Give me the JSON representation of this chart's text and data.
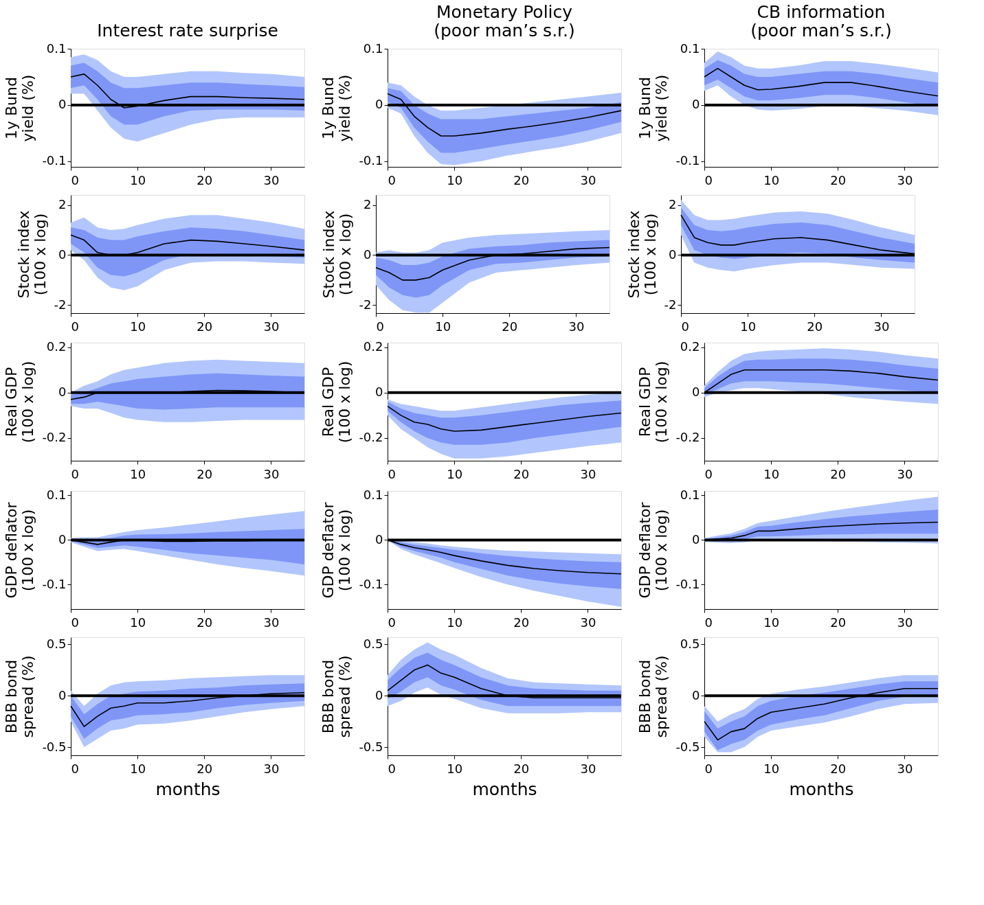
{
  "chart_data": [
    {
      "type": "line",
      "title": "Interest rate surprise",
      "ylabel": "1y  Bund\nyield (%)",
      "x": [
        0,
        2,
        4,
        6,
        8,
        10,
        14,
        18,
        22,
        26,
        30,
        35
      ],
      "xlim": [
        0,
        35
      ],
      "xticks": [
        0,
        10,
        20,
        30
      ],
      "ylim": [
        -0.11,
        0.1
      ],
      "yticks": [
        -0.1,
        0,
        0.1
      ],
      "grid": false,
      "legend": false,
      "marker": "none",
      "ref_lines": [
        {
          "axis": "y",
          "value": 0,
          "color": "#000000"
        }
      ],
      "series": [
        {
          "color": "#b2c6fd",
          "values": [
            null,
            null,
            null,
            null,
            null,
            null,
            null,
            null,
            null,
            null,
            null,
            null
          ],
          "upper": [
            0.085,
            0.09,
            0.08,
            0.06,
            0.05,
            0.05,
            0.055,
            0.06,
            0.06,
            0.057,
            0.055,
            0.05
          ],
          "lower": [
            0.02,
            0.02,
            -0.01,
            -0.04,
            -0.06,
            -0.065,
            -0.05,
            -0.035,
            -0.025,
            -0.022,
            -0.022,
            -0.022
          ]
        },
        {
          "color": "#7f96f7",
          "values": [
            null,
            null,
            null,
            null,
            null,
            null,
            null,
            null,
            null,
            null,
            null,
            null
          ],
          "upper": [
            0.07,
            0.075,
            0.06,
            0.04,
            0.03,
            0.03,
            0.035,
            0.04,
            0.04,
            0.037,
            0.035,
            0.032
          ],
          "lower": [
            0.03,
            0.035,
            0.01,
            -0.02,
            -0.035,
            -0.035,
            -0.02,
            -0.01,
            -0.008,
            -0.008,
            -0.008,
            -0.01
          ]
        },
        {
          "color": "#000000",
          "values": [
            0.05,
            0.055,
            0.035,
            0.01,
            -0.005,
            -0.002,
            0.008,
            0.015,
            0.015,
            0.013,
            0.012,
            0.01
          ]
        }
      ]
    },
    {
      "type": "line",
      "title": "Monetary Policy\n(poor man’s s.r.)",
      "ylabel": "1y  Bund\nyield (%)",
      "x": [
        0,
        2,
        4,
        6,
        8,
        10,
        14,
        18,
        22,
        26,
        30,
        35
      ],
      "xlim": [
        0,
        35
      ],
      "xticks": [
        0,
        10,
        20,
        30
      ],
      "ylim": [
        -0.11,
        0.1
      ],
      "yticks": [
        -0.1,
        0,
        0.1
      ],
      "grid": false,
      "legend": false,
      "marker": "none",
      "ref_lines": [
        {
          "axis": "y",
          "value": 0,
          "color": "#000000"
        }
      ],
      "series": [
        {
          "color": "#b2c6fd",
          "values": [
            null,
            null,
            null,
            null,
            null,
            null,
            null,
            null,
            null,
            null,
            null,
            null
          ],
          "upper": [
            0.04,
            0.035,
            0.015,
            0.0,
            -0.01,
            -0.01,
            -0.005,
            0.0,
            0.005,
            0.01,
            0.015,
            0.022
          ],
          "lower": [
            -0.005,
            -0.015,
            -0.055,
            -0.085,
            -0.105,
            -0.107,
            -0.1,
            -0.09,
            -0.082,
            -0.075,
            -0.065,
            -0.05
          ]
        },
        {
          "color": "#7f96f7",
          "values": [
            null,
            null,
            null,
            null,
            null,
            null,
            null,
            null,
            null,
            null,
            null,
            null
          ],
          "upper": [
            0.03,
            0.025,
            0.0,
            -0.015,
            -0.025,
            -0.025,
            -0.025,
            -0.02,
            -0.015,
            -0.01,
            -0.005,
            0.005
          ],
          "lower": [
            0.005,
            -0.005,
            -0.04,
            -0.065,
            -0.085,
            -0.085,
            -0.078,
            -0.07,
            -0.063,
            -0.055,
            -0.045,
            -0.03
          ]
        },
        {
          "color": "#000000",
          "values": [
            0.02,
            0.01,
            -0.02,
            -0.04,
            -0.055,
            -0.055,
            -0.05,
            -0.043,
            -0.037,
            -0.03,
            -0.022,
            -0.01
          ]
        }
      ]
    },
    {
      "type": "line",
      "title": "CB information\n(poor man’s s.r.)",
      "ylabel": "1y  Bund\nyield (%)",
      "x": [
        0,
        2,
        4,
        6,
        8,
        10,
        14,
        18,
        22,
        26,
        30,
        35
      ],
      "xlim": [
        0,
        35
      ],
      "xticks": [
        0,
        10,
        20,
        30
      ],
      "ylim": [
        -0.11,
        0.1
      ],
      "yticks": [
        -0.1,
        0,
        0.1
      ],
      "grid": false,
      "legend": false,
      "marker": "none",
      "ref_lines": [
        {
          "axis": "y",
          "value": 0,
          "color": "#000000"
        }
      ],
      "series": [
        {
          "color": "#b2c6fd",
          "values": [
            null,
            null,
            null,
            null,
            null,
            null,
            null,
            null,
            null,
            null,
            null,
            null
          ],
          "upper": [
            0.075,
            0.095,
            0.085,
            0.07,
            0.065,
            0.065,
            0.07,
            0.078,
            0.078,
            0.073,
            0.067,
            0.058
          ],
          "lower": [
            0.025,
            0.035,
            0.015,
            0.0,
            -0.008,
            -0.01,
            -0.007,
            -0.002,
            -0.002,
            -0.006,
            -0.01,
            -0.018
          ]
        },
        {
          "color": "#7f96f7",
          "values": [
            null,
            null,
            null,
            null,
            null,
            null,
            null,
            null,
            null,
            null,
            null,
            null
          ],
          "upper": [
            0.065,
            0.08,
            0.07,
            0.055,
            0.05,
            0.05,
            0.055,
            0.06,
            0.06,
            0.055,
            0.048,
            0.04
          ],
          "lower": [
            0.035,
            0.045,
            0.03,
            0.015,
            0.008,
            0.008,
            0.012,
            0.018,
            0.018,
            0.012,
            0.005,
            -0.003
          ]
        },
        {
          "color": "#000000",
          "values": [
            0.05,
            0.065,
            0.05,
            0.035,
            0.027,
            0.028,
            0.033,
            0.04,
            0.04,
            0.033,
            0.025,
            0.016
          ]
        }
      ]
    },
    {
      "type": "line",
      "ylabel": "Stock index\n(100 x log)",
      "x": [
        0,
        2,
        4,
        6,
        8,
        10,
        14,
        18,
        22,
        26,
        30,
        35
      ],
      "xlim": [
        0,
        35
      ],
      "xticks": [
        0,
        10,
        20,
        30
      ],
      "ylim": [
        -2.32,
        2.4
      ],
      "yticks": [
        -2,
        0,
        2
      ],
      "grid": false,
      "legend": false,
      "marker": "none",
      "ref_lines": [
        {
          "axis": "y",
          "value": 0,
          "color": "#000000"
        }
      ],
      "series": [
        {
          "color": "#b2c6fd",
          "values": [
            null,
            null,
            null,
            null,
            null,
            null,
            null,
            null,
            null,
            null,
            null,
            null
          ],
          "upper": [
            1.3,
            1.5,
            1.1,
            1.0,
            1.05,
            1.2,
            1.45,
            1.6,
            1.6,
            1.45,
            1.3,
            1.05
          ],
          "lower": [
            0.2,
            -0.2,
            -0.9,
            -1.3,
            -1.4,
            -1.25,
            -0.6,
            -0.3,
            -0.25,
            -0.25,
            -0.3,
            -0.35
          ]
        },
        {
          "color": "#7f96f7",
          "values": [
            null,
            null,
            null,
            null,
            null,
            null,
            null,
            null,
            null,
            null,
            null,
            null
          ],
          "upper": [
            1.1,
            1.0,
            0.7,
            0.6,
            0.6,
            0.75,
            0.95,
            1.1,
            1.05,
            0.95,
            0.8,
            0.6
          ],
          "lower": [
            0.45,
            0.1,
            -0.5,
            -0.8,
            -0.85,
            -0.7,
            -0.2,
            0.05,
            0.05,
            0.0,
            -0.05,
            -0.1
          ]
        },
        {
          "color": "#000000",
          "values": [
            0.8,
            0.6,
            0.1,
            0.0,
            0.0,
            0.1,
            0.45,
            0.6,
            0.55,
            0.45,
            0.35,
            0.2
          ]
        }
      ]
    },
    {
      "type": "line",
      "ylabel": "Stock index\n(100 x log)",
      "x": [
        0,
        2,
        4,
        6,
        8,
        10,
        14,
        18,
        22,
        26,
        30,
        35
      ],
      "xlim": [
        0,
        35
      ],
      "xticks": [
        0,
        10,
        20,
        30
      ],
      "ylim": [
        -2.32,
        2.4
      ],
      "yticks": [
        -2,
        0,
        2
      ],
      "grid": false,
      "legend": false,
      "marker": "none",
      "ref_lines": [
        {
          "axis": "y",
          "value": 0,
          "color": "#000000"
        }
      ],
      "series": [
        {
          "color": "#b2c6fd",
          "values": [
            null,
            null,
            null,
            null,
            null,
            null,
            null,
            null,
            null,
            null,
            null,
            null
          ],
          "upper": [
            0.1,
            0.2,
            0.1,
            0.1,
            0.2,
            0.5,
            0.7,
            0.8,
            0.85,
            0.9,
            0.95,
            1.0
          ],
          "lower": [
            -1.2,
            -1.8,
            -2.2,
            -2.3,
            -2.3,
            -1.9,
            -1.1,
            -0.7,
            -0.6,
            -0.5,
            -0.4,
            -0.3
          ]
        },
        {
          "color": "#7f96f7",
          "values": [
            null,
            null,
            null,
            null,
            null,
            null,
            null,
            null,
            null,
            null,
            null,
            null
          ],
          "upper": [
            -0.1,
            -0.2,
            -0.4,
            -0.4,
            -0.3,
            -0.05,
            0.25,
            0.35,
            0.4,
            0.5,
            0.55,
            0.6
          ],
          "lower": [
            -0.8,
            -1.3,
            -1.6,
            -1.7,
            -1.6,
            -1.2,
            -0.6,
            -0.35,
            -0.3,
            -0.2,
            -0.1,
            -0.05
          ]
        },
        {
          "color": "#000000",
          "values": [
            -0.5,
            -0.7,
            -1.0,
            -1.0,
            -0.9,
            -0.6,
            -0.2,
            0.0,
            0.05,
            0.15,
            0.25,
            0.3
          ]
        }
      ]
    },
    {
      "type": "line",
      "ylabel": "Stock index\n(100 x log)",
      "x": [
        0,
        2,
        4,
        6,
        8,
        10,
        14,
        18,
        22,
        26,
        30,
        35
      ],
      "xlim": [
        0,
        35
      ],
      "xticks": [
        0,
        10,
        20,
        30
      ],
      "ylim": [
        -2.32,
        2.4
      ],
      "yticks": [
        -2,
        0,
        2
      ],
      "grid": false,
      "legend": false,
      "marker": "none",
      "ref_lines": [
        {
          "axis": "y",
          "value": 0,
          "color": "#000000"
        }
      ],
      "series": [
        {
          "color": "#b2c6fd",
          "values": [
            null,
            null,
            null,
            null,
            null,
            null,
            null,
            null,
            null,
            null,
            null,
            null
          ],
          "upper": [
            2.2,
            1.6,
            1.4,
            1.4,
            1.45,
            1.55,
            1.7,
            1.75,
            1.65,
            1.4,
            1.1,
            0.8
          ],
          "lower": [
            0.8,
            -0.3,
            -0.5,
            -0.6,
            -0.65,
            -0.55,
            -0.4,
            -0.3,
            -0.3,
            -0.4,
            -0.5,
            -0.55
          ]
        },
        {
          "color": "#7f96f7",
          "values": [
            null,
            null,
            null,
            null,
            null,
            null,
            null,
            null,
            null,
            null,
            null,
            null
          ],
          "upper": [
            1.9,
            1.2,
            1.0,
            0.95,
            1.0,
            1.1,
            1.25,
            1.3,
            1.2,
            0.95,
            0.7,
            0.45
          ],
          "lower": [
            1.2,
            0.2,
            0.0,
            -0.1,
            -0.15,
            -0.1,
            0.05,
            0.1,
            0.05,
            -0.1,
            -0.2,
            -0.3
          ]
        },
        {
          "color": "#000000",
          "values": [
            1.6,
            0.7,
            0.5,
            0.4,
            0.4,
            0.5,
            0.65,
            0.7,
            0.6,
            0.4,
            0.2,
            0.05
          ]
        }
      ]
    },
    {
      "type": "line",
      "ylabel": "Real GDP\n(100 x log)",
      "x": [
        0,
        2,
        4,
        6,
        8,
        10,
        14,
        18,
        22,
        26,
        30,
        35
      ],
      "xlim": [
        0,
        35
      ],
      "xticks": [
        0,
        10,
        20,
        30
      ],
      "ylim": [
        -0.3,
        0.22
      ],
      "yticks": [
        -0.2,
        0,
        0.2
      ],
      "grid": false,
      "legend": false,
      "marker": "none",
      "ref_lines": [
        {
          "axis": "y",
          "value": 0,
          "color": "#000000"
        }
      ],
      "series": [
        {
          "color": "#b2c6fd",
          "values": [
            null,
            null,
            null,
            null,
            null,
            null,
            null,
            null,
            null,
            null,
            null,
            null
          ],
          "upper": [
            0.0,
            0.03,
            0.05,
            0.08,
            0.1,
            0.11,
            0.13,
            0.14,
            0.145,
            0.14,
            0.135,
            0.13
          ],
          "lower": [
            -0.06,
            -0.07,
            -0.07,
            -0.09,
            -0.11,
            -0.12,
            -0.13,
            -0.13,
            -0.125,
            -0.12,
            -0.12,
            -0.12
          ]
        },
        {
          "color": "#7f96f7",
          "values": [
            null,
            null,
            null,
            null,
            null,
            null,
            null,
            null,
            null,
            null,
            null,
            null
          ],
          "upper": [
            -0.01,
            0.0,
            0.02,
            0.04,
            0.05,
            0.06,
            0.07,
            0.08,
            0.085,
            0.08,
            0.075,
            0.07
          ],
          "lower": [
            -0.05,
            -0.05,
            -0.04,
            -0.05,
            -0.06,
            -0.07,
            -0.075,
            -0.07,
            -0.065,
            -0.065,
            -0.065,
            -0.065
          ]
        },
        {
          "color": "#000000",
          "values": [
            -0.03,
            -0.02,
            0.0,
            0.0,
            0.0,
            0.0,
            0.0,
            0.005,
            0.01,
            0.008,
            0.005,
            0.0
          ]
        }
      ]
    },
    {
      "type": "line",
      "ylabel": "Real GDP\n(100 x log)",
      "x": [
        0,
        2,
        4,
        6,
        8,
        10,
        14,
        18,
        22,
        26,
        30,
        35
      ],
      "xlim": [
        0,
        35
      ],
      "xticks": [
        0,
        10,
        20,
        30
      ],
      "ylim": [
        -0.3,
        0.22
      ],
      "yticks": [
        -0.2,
        0,
        0.2
      ],
      "grid": false,
      "legend": false,
      "marker": "none",
      "ref_lines": [
        {
          "axis": "y",
          "value": 0,
          "color": "#000000"
        }
      ],
      "series": [
        {
          "color": "#b2c6fd",
          "values": [
            null,
            null,
            null,
            null,
            null,
            null,
            null,
            null,
            null,
            null,
            null,
            null
          ],
          "upper": [
            -0.03,
            -0.05,
            -0.06,
            -0.07,
            -0.08,
            -0.08,
            -0.065,
            -0.05,
            -0.035,
            -0.02,
            -0.01,
            0.0
          ],
          "lower": [
            -0.1,
            -0.16,
            -0.2,
            -0.24,
            -0.27,
            -0.29,
            -0.29,
            -0.28,
            -0.265,
            -0.25,
            -0.235,
            -0.22
          ]
        },
        {
          "color": "#7f96f7",
          "values": [
            null,
            null,
            null,
            null,
            null,
            null,
            null,
            null,
            null,
            null,
            null,
            null
          ],
          "upper": [
            -0.04,
            -0.07,
            -0.09,
            -0.1,
            -0.11,
            -0.11,
            -0.1,
            -0.085,
            -0.07,
            -0.055,
            -0.045,
            -0.035
          ],
          "lower": [
            -0.08,
            -0.13,
            -0.17,
            -0.2,
            -0.22,
            -0.23,
            -0.23,
            -0.22,
            -0.2,
            -0.185,
            -0.17,
            -0.15
          ]
        },
        {
          "color": "#000000",
          "values": [
            -0.06,
            -0.1,
            -0.13,
            -0.14,
            -0.16,
            -0.17,
            -0.165,
            -0.15,
            -0.135,
            -0.12,
            -0.105,
            -0.09
          ]
        }
      ]
    },
    {
      "type": "line",
      "ylabel": "Real GDP\n(100 x log)",
      "x": [
        0,
        2,
        4,
        6,
        8,
        10,
        14,
        18,
        22,
        26,
        30,
        35
      ],
      "xlim": [
        0,
        35
      ],
      "xticks": [
        0,
        10,
        20,
        30
      ],
      "ylim": [
        -0.3,
        0.22
      ],
      "yticks": [
        -0.2,
        0,
        0.2
      ],
      "grid": false,
      "legend": false,
      "marker": "none",
      "ref_lines": [
        {
          "axis": "y",
          "value": 0,
          "color": "#000000"
        }
      ],
      "series": [
        {
          "color": "#b2c6fd",
          "values": [
            null,
            null,
            null,
            null,
            null,
            null,
            null,
            null,
            null,
            null,
            null,
            null
          ],
          "upper": [
            0.03,
            0.09,
            0.14,
            0.17,
            0.18,
            0.185,
            0.19,
            0.195,
            0.19,
            0.18,
            0.165,
            0.15
          ],
          "lower": [
            -0.02,
            0.0,
            0.01,
            0.02,
            0.02,
            0.015,
            0.005,
            -0.005,
            -0.02,
            -0.03,
            -0.04,
            -0.05
          ]
        },
        {
          "color": "#7f96f7",
          "values": [
            null,
            null,
            null,
            null,
            null,
            null,
            null,
            null,
            null,
            null,
            null,
            null
          ],
          "upper": [
            0.02,
            0.07,
            0.11,
            0.14,
            0.145,
            0.145,
            0.15,
            0.15,
            0.145,
            0.135,
            0.12,
            0.105
          ],
          "lower": [
            -0.01,
            0.015,
            0.04,
            0.05,
            0.05,
            0.05,
            0.045,
            0.04,
            0.03,
            0.02,
            0.01,
            0.0
          ]
        },
        {
          "color": "#000000",
          "values": [
            0.0,
            0.04,
            0.08,
            0.1,
            0.1,
            0.1,
            0.1,
            0.1,
            0.095,
            0.085,
            0.07,
            0.055
          ]
        }
      ]
    },
    {
      "type": "line",
      "ylabel": "GDP deflator\n(100 x log)",
      "x": [
        0,
        2,
        4,
        6,
        8,
        10,
        14,
        18,
        22,
        26,
        30,
        35
      ],
      "xlim": [
        0,
        35
      ],
      "xticks": [
        0,
        10,
        20,
        30
      ],
      "ylim": [
        -0.155,
        0.11
      ],
      "yticks": [
        -0.1,
        0,
        0.1
      ],
      "grid": false,
      "legend": false,
      "marker": "none",
      "ref_lines": [
        {
          "axis": "y",
          "value": 0,
          "color": "#000000"
        }
      ],
      "series": [
        {
          "color": "#b2c6fd",
          "values": [
            null,
            null,
            null,
            null,
            null,
            null,
            null,
            null,
            null,
            null,
            null,
            null
          ],
          "upper": [
            0.005,
            0.006,
            0.006,
            0.012,
            0.018,
            0.022,
            0.028,
            0.035,
            0.042,
            0.05,
            0.057,
            0.065
          ],
          "lower": [
            -0.005,
            -0.015,
            -0.025,
            -0.022,
            -0.02,
            -0.025,
            -0.035,
            -0.045,
            -0.055,
            -0.063,
            -0.07,
            -0.08
          ]
        },
        {
          "color": "#7f96f7",
          "values": [
            null,
            null,
            null,
            null,
            null,
            null,
            null,
            null,
            null,
            null,
            null,
            null
          ],
          "upper": [
            0.003,
            0.002,
            0.0,
            0.005,
            0.01,
            0.012,
            0.013,
            0.015,
            0.018,
            0.02,
            0.022,
            0.025
          ],
          "lower": [
            -0.003,
            -0.01,
            -0.018,
            -0.015,
            -0.012,
            -0.015,
            -0.022,
            -0.03,
            -0.035,
            -0.04,
            -0.045,
            -0.055
          ]
        },
        {
          "color": "#000000",
          "values": [
            0.0,
            -0.005,
            -0.01,
            -0.005,
            0.0,
            0.0,
            -0.003,
            -0.003,
            -0.002,
            -0.002,
            -0.001,
            0.0
          ]
        }
      ]
    },
    {
      "type": "line",
      "ylabel": "GDP deflator\n(100 x log)",
      "x": [
        0,
        2,
        4,
        6,
        8,
        10,
        14,
        18,
        22,
        26,
        30,
        35
      ],
      "xlim": [
        0,
        35
      ],
      "xticks": [
        0,
        10,
        20,
        30
      ],
      "ylim": [
        -0.155,
        0.11
      ],
      "yticks": [
        -0.1,
        0,
        0.1
      ],
      "grid": false,
      "legend": false,
      "marker": "none",
      "ref_lines": [
        {
          "axis": "y",
          "value": 0,
          "color": "#000000"
        }
      ],
      "series": [
        {
          "color": "#b2c6fd",
          "values": [
            null,
            null,
            null,
            null,
            null,
            null,
            null,
            null,
            null,
            null,
            null,
            null
          ],
          "upper": [
            0.0,
            -0.002,
            -0.005,
            -0.008,
            -0.012,
            -0.015,
            -0.02,
            -0.024,
            -0.026,
            -0.028,
            -0.03,
            -0.032
          ],
          "lower": [
            0.0,
            -0.02,
            -0.032,
            -0.042,
            -0.052,
            -0.063,
            -0.083,
            -0.1,
            -0.114,
            -0.126,
            -0.138,
            -0.15
          ]
        },
        {
          "color": "#7f96f7",
          "values": [
            null,
            null,
            null,
            null,
            null,
            null,
            null,
            null,
            null,
            null,
            null,
            null
          ],
          "upper": [
            0.0,
            -0.005,
            -0.01,
            -0.014,
            -0.018,
            -0.022,
            -0.03,
            -0.036,
            -0.041,
            -0.045,
            -0.048,
            -0.05
          ],
          "lower": [
            0.0,
            -0.015,
            -0.025,
            -0.032,
            -0.04,
            -0.05,
            -0.065,
            -0.08,
            -0.09,
            -0.098,
            -0.104,
            -0.11
          ]
        },
        {
          "color": "#000000",
          "values": [
            0.0,
            -0.01,
            -0.017,
            -0.022,
            -0.028,
            -0.035,
            -0.047,
            -0.057,
            -0.064,
            -0.069,
            -0.073,
            -0.076
          ]
        }
      ]
    },
    {
      "type": "line",
      "ylabel": "GDP deflator\n(100 x log)",
      "x": [
        0,
        2,
        4,
        6,
        8,
        10,
        14,
        18,
        22,
        26,
        30,
        35
      ],
      "xlim": [
        0,
        35
      ],
      "xticks": [
        0,
        10,
        20,
        30
      ],
      "ylim": [
        -0.155,
        0.11
      ],
      "yticks": [
        -0.1,
        0,
        0.1
      ],
      "grid": false,
      "legend": false,
      "marker": "none",
      "ref_lines": [
        {
          "axis": "y",
          "value": 0,
          "color": "#000000"
        }
      ],
      "series": [
        {
          "color": "#b2c6fd",
          "values": [
            null,
            null,
            null,
            null,
            null,
            null,
            null,
            null,
            null,
            null,
            null,
            null
          ],
          "upper": [
            0.004,
            0.01,
            0.015,
            0.025,
            0.038,
            0.043,
            0.053,
            0.063,
            0.072,
            0.08,
            0.088,
            0.097
          ],
          "lower": [
            -0.004,
            -0.006,
            -0.007,
            -0.005,
            0.0,
            -0.002,
            -0.002,
            -0.003,
            -0.004,
            -0.005,
            -0.006,
            -0.008
          ]
        },
        {
          "color": "#7f96f7",
          "values": [
            null,
            null,
            null,
            null,
            null,
            null,
            null,
            null,
            null,
            null,
            null,
            null
          ],
          "upper": [
            0.002,
            0.006,
            0.01,
            0.018,
            0.03,
            0.032,
            0.04,
            0.047,
            0.053,
            0.058,
            0.063,
            0.068
          ],
          "lower": [
            -0.002,
            -0.002,
            -0.002,
            0.002,
            0.008,
            0.008,
            0.01,
            0.012,
            0.013,
            0.014,
            0.014,
            0.014
          ]
        },
        {
          "color": "#000000",
          "values": [
            0.0,
            0.002,
            0.004,
            0.01,
            0.02,
            0.02,
            0.025,
            0.03,
            0.033,
            0.036,
            0.038,
            0.04
          ]
        }
      ]
    },
    {
      "type": "line",
      "ylabel": "BBB bond\nspread (%)",
      "xlabel": "months",
      "x": [
        0,
        2,
        4,
        6,
        8,
        10,
        14,
        18,
        22,
        26,
        30,
        35
      ],
      "xlim": [
        0,
        35
      ],
      "xticks": [
        0,
        10,
        20,
        30
      ],
      "ylim": [
        -0.58,
        0.57
      ],
      "yticks": [
        -0.5,
        0,
        0.5
      ],
      "grid": false,
      "legend": false,
      "marker": "none",
      "ref_lines": [
        {
          "axis": "y",
          "value": 0,
          "color": "#000000"
        }
      ],
      "series": [
        {
          "color": "#b2c6fd",
          "values": [
            null,
            null,
            null,
            null,
            null,
            null,
            null,
            null,
            null,
            null,
            null,
            null
          ],
          "upper": [
            0.05,
            -0.1,
            0.02,
            0.1,
            0.13,
            0.14,
            0.15,
            0.17,
            0.18,
            0.19,
            0.2,
            0.2
          ],
          "lower": [
            -0.25,
            -0.5,
            -0.42,
            -0.34,
            -0.32,
            -0.28,
            -0.27,
            -0.24,
            -0.2,
            -0.16,
            -0.13,
            -0.1
          ]
        },
        {
          "color": "#7f96f7",
          "values": [
            null,
            null,
            null,
            null,
            null,
            null,
            null,
            null,
            null,
            null,
            null,
            null
          ],
          "upper": [
            0.0,
            -0.18,
            -0.08,
            0.0,
            0.02,
            0.04,
            0.05,
            0.07,
            0.08,
            0.1,
            0.11,
            0.12
          ],
          "lower": [
            -0.2,
            -0.42,
            -0.32,
            -0.24,
            -0.22,
            -0.19,
            -0.18,
            -0.16,
            -0.12,
            -0.09,
            -0.07,
            -0.05
          ]
        },
        {
          "color": "#000000",
          "values": [
            -0.1,
            -0.3,
            -0.2,
            -0.12,
            -0.1,
            -0.07,
            -0.07,
            -0.05,
            -0.02,
            0.0,
            0.02,
            0.03
          ]
        }
      ]
    },
    {
      "type": "line",
      "ylabel": "BBB bond\nspread (%)",
      "xlabel": "months",
      "x": [
        0,
        2,
        4,
        6,
        8,
        10,
        14,
        18,
        22,
        26,
        30,
        35
      ],
      "xlim": [
        0,
        35
      ],
      "xticks": [
        0,
        10,
        20,
        30
      ],
      "ylim": [
        -0.58,
        0.57
      ],
      "yticks": [
        -0.5,
        0,
        0.5
      ],
      "grid": false,
      "legend": false,
      "marker": "none",
      "ref_lines": [
        {
          "axis": "y",
          "value": 0,
          "color": "#000000"
        }
      ],
      "series": [
        {
          "color": "#b2c6fd",
          "values": [
            null,
            null,
            null,
            null,
            null,
            null,
            null,
            null,
            null,
            null,
            null,
            null
          ],
          "upper": [
            0.2,
            0.35,
            0.45,
            0.52,
            0.45,
            0.4,
            0.27,
            0.17,
            0.13,
            0.12,
            0.11,
            0.1
          ],
          "lower": [
            -0.1,
            -0.05,
            0.03,
            0.08,
            0.01,
            -0.03,
            -0.12,
            -0.17,
            -0.17,
            -0.17,
            -0.16,
            -0.16
          ]
        },
        {
          "color": "#7f96f7",
          "values": [
            null,
            null,
            null,
            null,
            null,
            null,
            null,
            null,
            null,
            null,
            null,
            null
          ],
          "upper": [
            0.15,
            0.27,
            0.37,
            0.42,
            0.35,
            0.3,
            0.18,
            0.1,
            0.07,
            0.06,
            0.05,
            0.05
          ],
          "lower": [
            -0.03,
            0.04,
            0.13,
            0.18,
            0.1,
            0.06,
            -0.04,
            -0.1,
            -0.1,
            -0.1,
            -0.1,
            -0.1
          ]
        },
        {
          "color": "#000000",
          "values": [
            0.05,
            0.15,
            0.25,
            0.3,
            0.22,
            0.18,
            0.07,
            0.0,
            -0.02,
            -0.02,
            -0.02,
            -0.02
          ]
        }
      ]
    },
    {
      "type": "line",
      "ylabel": "BBB bond\nspread (%)",
      "xlabel": "months",
      "x": [
        0,
        2,
        4,
        6,
        8,
        10,
        14,
        18,
        22,
        26,
        30,
        35
      ],
      "xlim": [
        0,
        35
      ],
      "xticks": [
        0,
        10,
        20,
        30
      ],
      "ylim": [
        -0.58,
        0.57
      ],
      "yticks": [
        -0.5,
        0,
        0.5
      ],
      "grid": false,
      "legend": false,
      "marker": "none",
      "ref_lines": [
        {
          "axis": "y",
          "value": 0,
          "color": "#000000"
        }
      ],
      "series": [
        {
          "color": "#b2c6fd",
          "values": [
            null,
            null,
            null,
            null,
            null,
            null,
            null,
            null,
            null,
            null,
            null,
            null
          ],
          "upper": [
            -0.1,
            -0.25,
            -0.18,
            -0.13,
            -0.03,
            0.02,
            0.06,
            0.09,
            0.13,
            0.17,
            0.2,
            0.2
          ],
          "lower": [
            -0.4,
            -0.55,
            -0.55,
            -0.5,
            -0.4,
            -0.34,
            -0.3,
            -0.26,
            -0.2,
            -0.13,
            -0.08,
            -0.07
          ]
        },
        {
          "color": "#7f96f7",
          "values": [
            null,
            null,
            null,
            null,
            null,
            null,
            null,
            null,
            null,
            null,
            null,
            null
          ],
          "upper": [
            -0.15,
            -0.32,
            -0.25,
            -0.2,
            -0.1,
            -0.05,
            0.0,
            0.03,
            0.07,
            0.11,
            0.14,
            0.14
          ],
          "lower": [
            -0.35,
            -0.53,
            -0.47,
            -0.43,
            -0.34,
            -0.28,
            -0.23,
            -0.19,
            -0.12,
            -0.05,
            -0.01,
            -0.01
          ]
        },
        {
          "color": "#000000",
          "values": [
            -0.25,
            -0.43,
            -0.35,
            -0.32,
            -0.22,
            -0.16,
            -0.12,
            -0.08,
            -0.02,
            0.03,
            0.07,
            0.07
          ]
        }
      ]
    }
  ]
}
